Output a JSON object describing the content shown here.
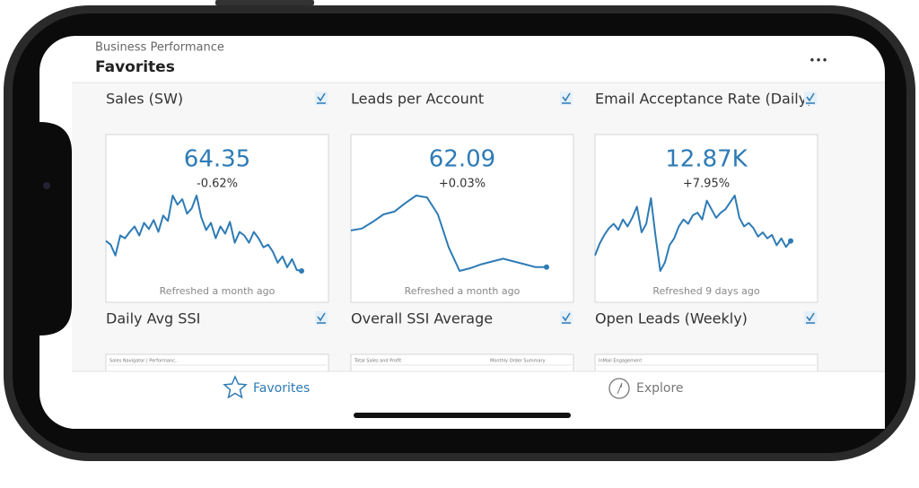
{
  "header": {
    "subtitle": "Business Performance",
    "title": "Favorites",
    "menu": "•••"
  },
  "cards": [
    {
      "title": "Sales (SW)",
      "value": "64.35",
      "change": "-0.62%",
      "refreshed": "Refreshed a month ago",
      "sparkline": [
        52,
        48,
        36,
        58,
        55,
        62,
        68,
        58,
        72,
        65,
        75,
        62,
        80,
        74,
        102,
        92,
        98,
        82,
        88,
        102,
        78,
        64,
        72,
        55,
        68,
        60,
        73,
        50,
        62,
        58,
        50,
        62,
        55,
        45,
        48,
        40,
        28,
        35,
        23,
        32,
        20,
        19
      ]
    },
    {
      "title": "Leads per Account",
      "value": "62.09",
      "change": "+0.03%",
      "refreshed": "Refreshed a month ago",
      "sparkline": [
        63,
        65,
        72,
        80,
        83,
        92,
        100,
        98,
        80,
        45,
        20,
        23,
        27,
        30,
        33,
        30,
        27,
        24,
        24
      ]
    },
    {
      "title": "Email Acceptance Rate (Daily)",
      "value": "12.87K",
      "change": "+7.95%",
      "refreshed": "Refreshed 9 days ago",
      "sparkline": [
        38,
        52,
        62,
        70,
        75,
        68,
        80,
        72,
        82,
        95,
        65,
        75,
        105,
        60,
        20,
        30,
        50,
        58,
        72,
        80,
        75,
        85,
        88,
        80,
        102,
        92,
        82,
        88,
        92,
        100,
        108,
        82,
        72,
        76,
        70,
        60,
        65,
        58,
        62,
        50,
        58,
        48,
        55
      ]
    }
  ],
  "small_cards": [
    {
      "title": "Daily Avg SSI",
      "preview": "Sales Navigator | Performanc.."
    },
    {
      "title": "Overall SSI Average",
      "preview": "Total Sales and Profit",
      "preview2": "Monthly Order Summary"
    },
    {
      "title": "Open Leads (Weekly)",
      "preview": "InMail Engagement"
    }
  ],
  "tabs": {
    "favorites": "Favorites",
    "explore": "Explore"
  }
}
